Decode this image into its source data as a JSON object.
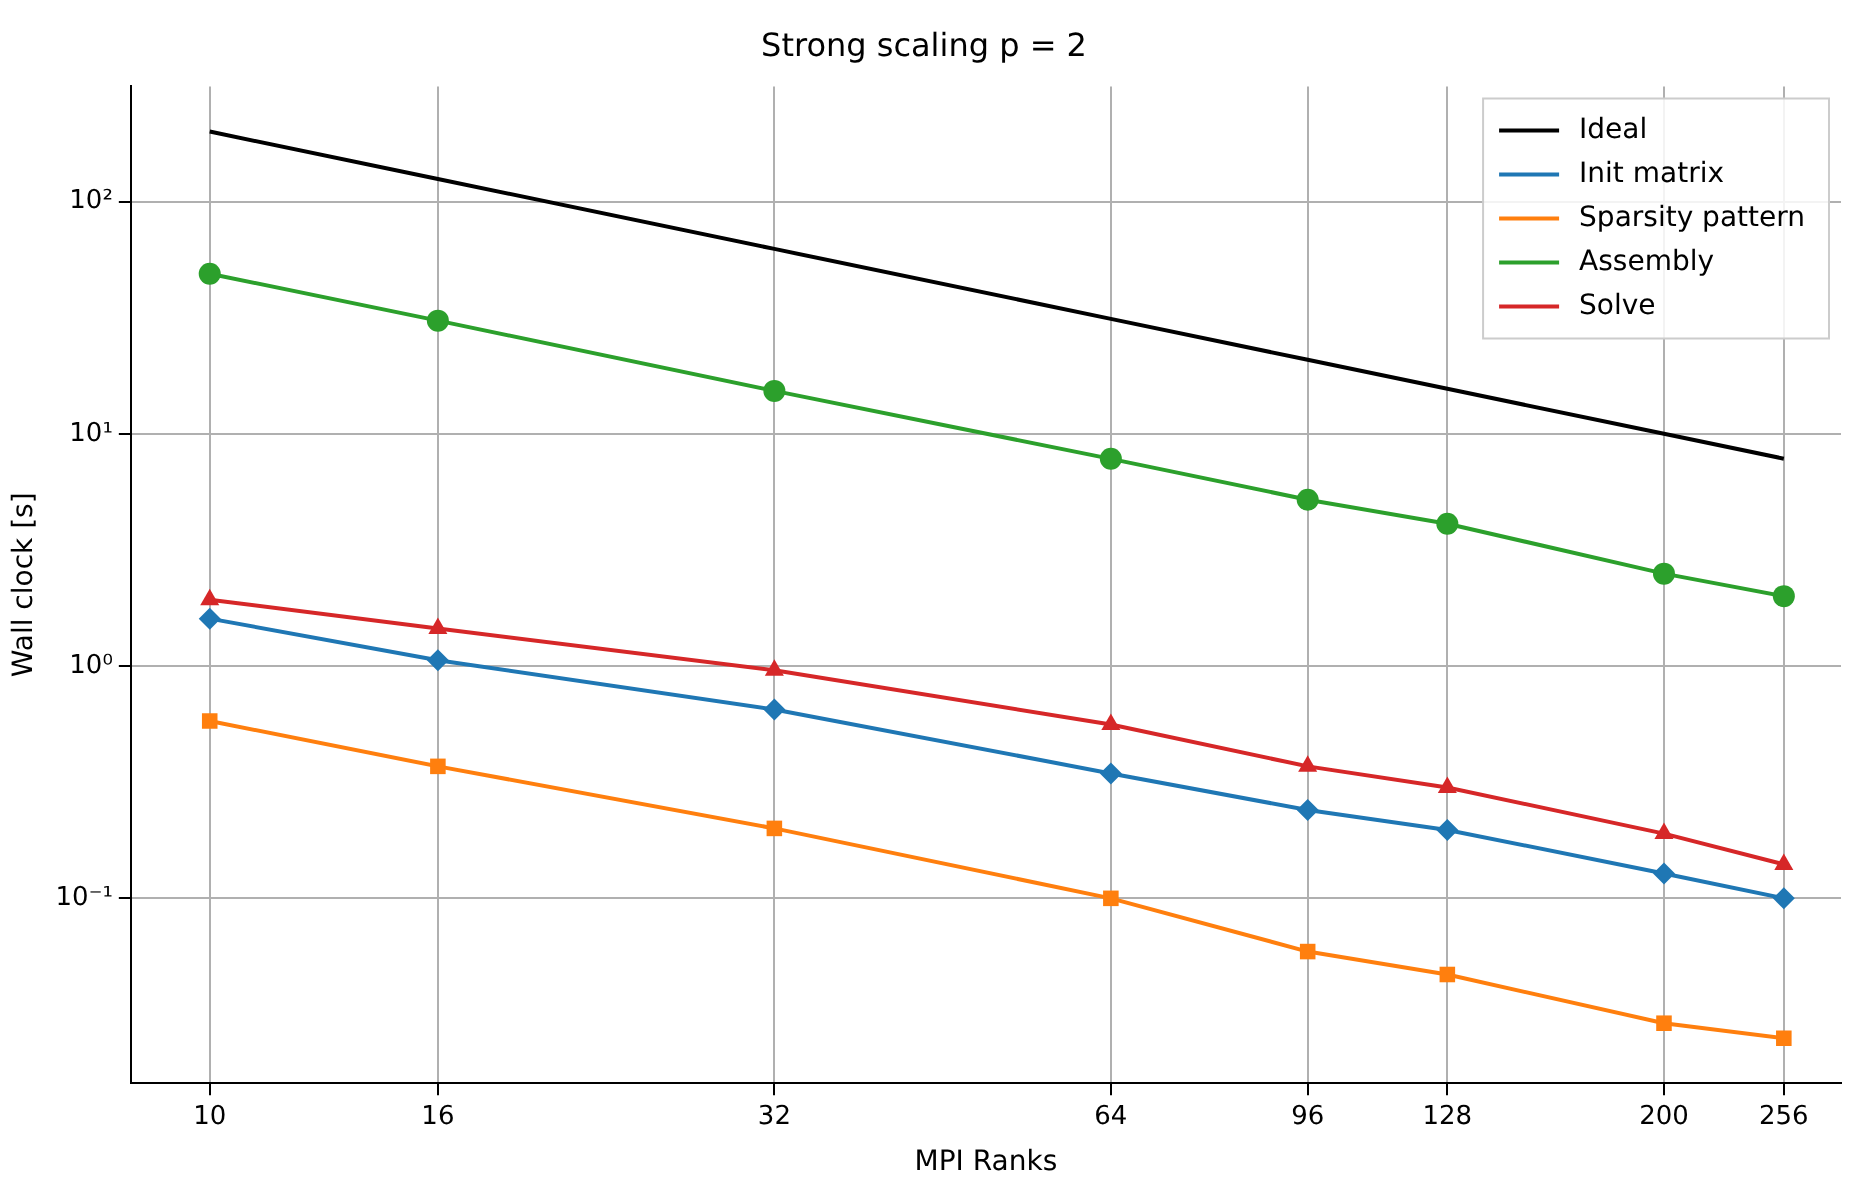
{
  "chart_data": {
    "type": "line",
    "title": "Strong scaling p = 2",
    "xlabel": "MPI Ranks",
    "ylabel": "Wall clock [s]",
    "log": "xy",
    "grid": true,
    "legend": "top right",
    "x": [
      10,
      16,
      32,
      64,
      96,
      128,
      200,
      256
    ],
    "xlim": [
      8.5,
      288
    ],
    "xticks": [
      10,
      16,
      32,
      64,
      96,
      128,
      200,
      256
    ],
    "ylim": [
      0.016,
      313
    ],
    "yticks": [
      {
        "value": 0.1,
        "label": "10⁻¹"
      },
      {
        "value": 1,
        "label": "10⁰"
      },
      {
        "value": 10,
        "label": "10¹"
      },
      {
        "value": 100,
        "label": "10²"
      }
    ],
    "series": [
      {
        "name": "Ideal",
        "color": "#000000",
        "marker": "none",
        "values": [
          200,
          125,
          62.5,
          31.25,
          20.83,
          15.625,
          10,
          7.8125
        ]
      },
      {
        "name": "Init matrix",
        "color": "#1f77b4",
        "marker": "diamond",
        "values": [
          1.6,
          1.06,
          0.65,
          0.345,
          0.24,
          0.197,
          0.128,
          0.1
        ]
      },
      {
        "name": "Sparsity pattern",
        "color": "#ff7f0e",
        "marker": "square",
        "values": [
          0.58,
          0.37,
          0.2,
          0.1,
          0.059,
          0.047,
          0.029,
          0.025
        ]
      },
      {
        "name": "Assembly",
        "color": "#2ca02c",
        "marker": "circle",
        "values": [
          48.9,
          30.7,
          15.3,
          7.8,
          5.2,
          4.1,
          2.5,
          2.0
        ]
      },
      {
        "name": "Solve",
        "color": "#d62728",
        "marker": "triangle",
        "values": [
          1.93,
          1.45,
          0.96,
          0.56,
          0.37,
          0.3,
          0.19,
          0.14
        ]
      }
    ]
  }
}
